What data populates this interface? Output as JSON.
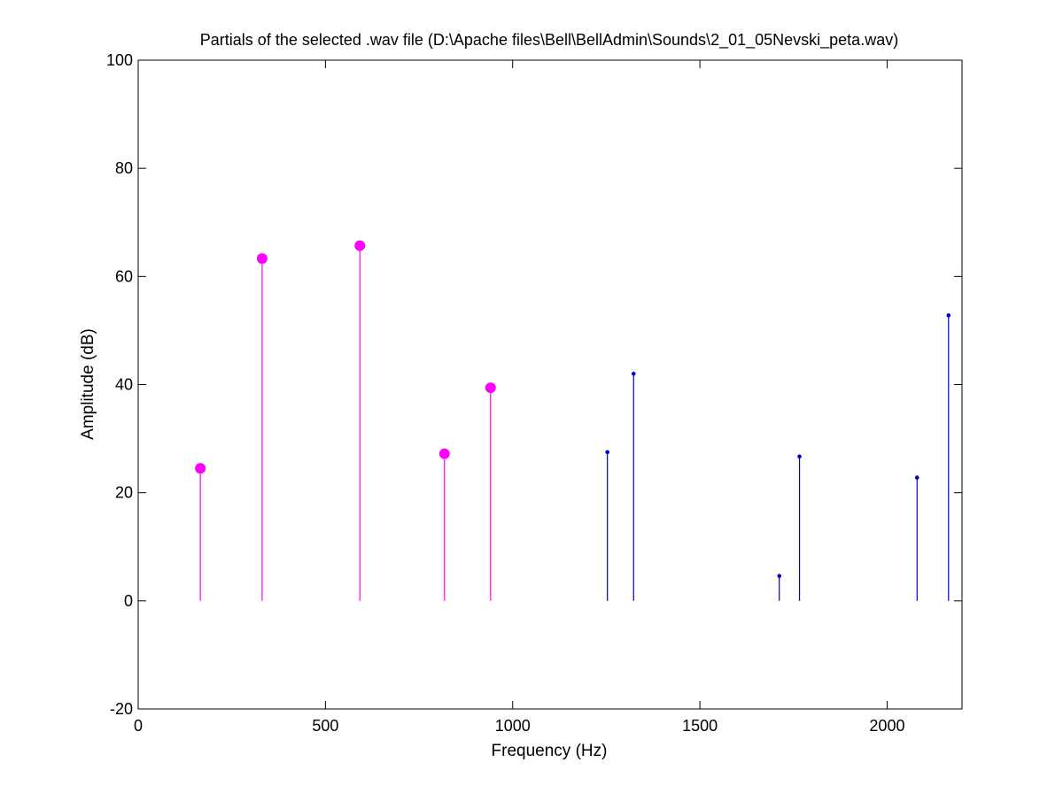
{
  "chart_data": {
    "type": "stem",
    "title": "Partials of the selected .wav file (D:\\Apache files\\Bell\\BellAdmin\\Sounds\\2_01_05Nevski_peta.wav)",
    "xlabel": "Frequency (Hz)",
    "ylabel": "Amplitude (dB)",
    "xlim": [
      0,
      2200
    ],
    "ylim": [
      -20,
      100
    ],
    "xticks": [
      0,
      500,
      1000,
      1500,
      2000
    ],
    "yticks": [
      -20,
      0,
      20,
      40,
      60,
      80,
      100
    ],
    "grid": false,
    "baseline": 0,
    "series": [
      {
        "color": "#ff00ff",
        "marker": "large-dot",
        "x": [
          166,
          331,
          592,
          818,
          941
        ],
        "y": [
          24.5,
          63.3,
          65.7,
          27.2,
          39.4
        ]
      },
      {
        "color": "#0000cc",
        "marker": "small-dot",
        "x": [
          1253,
          1323,
          1712,
          1766,
          2080,
          2164
        ],
        "y": [
          27.5,
          42.0,
          4.6,
          26.7,
          22.8,
          52.8
        ]
      }
    ]
  }
}
